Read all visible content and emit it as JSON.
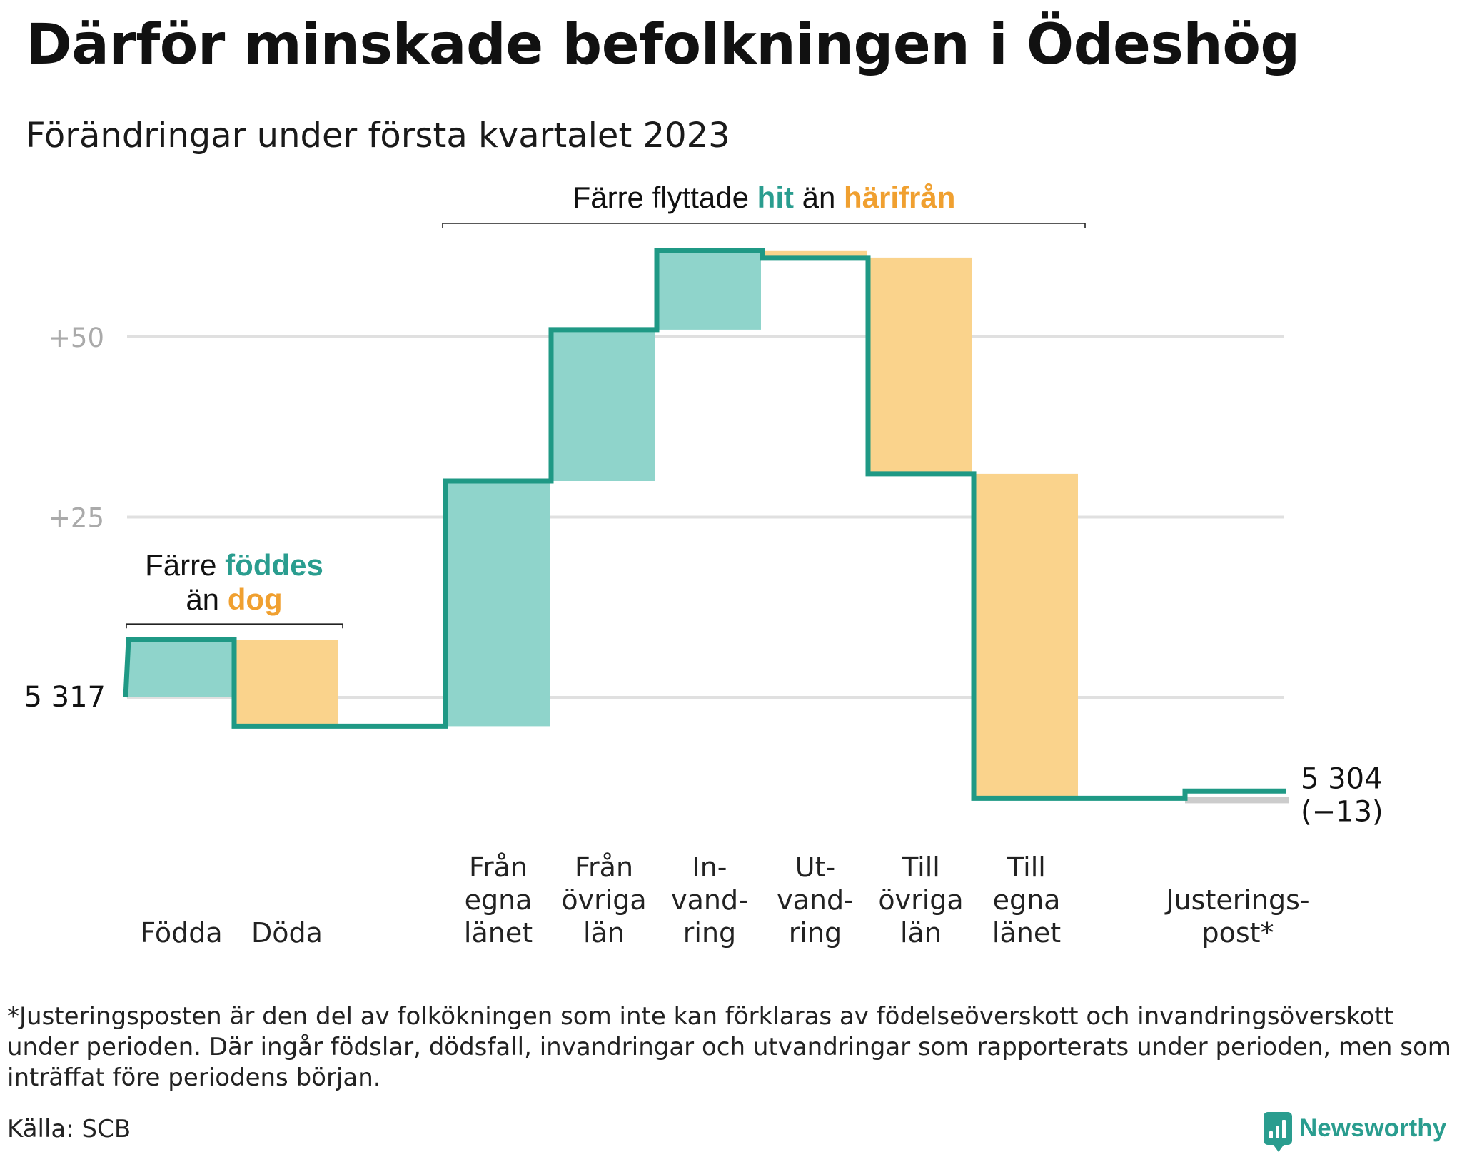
{
  "title": "Därför minskade befolkningen i Ödeshög",
  "subtitle": "Förändringar under första kvartalet 2023",
  "colors": {
    "increase": "#8fd4cb",
    "decrease": "#fad38c",
    "line": "#1f9985",
    "adjust": "#cccccc",
    "grid": "#e0e0e0",
    "tick": "#aaaaaa",
    "accent_green": "#2a9d8f",
    "accent_orange": "#f0a030"
  },
  "chart_data": {
    "type": "waterfall",
    "start_value": 5317,
    "start_label": "5 317",
    "end_label": "5 304",
    "end_change_label": "(−13)",
    "yticks": [
      {
        "value": 25,
        "label": "+25"
      },
      {
        "value": 50,
        "label": "+50"
      }
    ],
    "steps": [
      {
        "label": [
          "Födda"
        ],
        "delta": 8,
        "kind": "increase"
      },
      {
        "label": [
          "Döda"
        ],
        "delta": -12,
        "kind": "decrease"
      },
      {
        "label": [],
        "delta": 0,
        "kind": "gap"
      },
      {
        "label": [
          "Från",
          "egna",
          "länet"
        ],
        "delta": 34,
        "kind": "increase"
      },
      {
        "label": [
          "Från",
          "övriga",
          "län"
        ],
        "delta": 21,
        "kind": "increase"
      },
      {
        "label": [
          "In-",
          "vand-",
          "ring"
        ],
        "delta": 11,
        "kind": "increase"
      },
      {
        "label": [
          "Ut-",
          "vand-",
          "ring"
        ],
        "delta": -1,
        "kind": "decrease"
      },
      {
        "label": [
          "Till",
          "övriga",
          "län"
        ],
        "delta": -30,
        "kind": "decrease"
      },
      {
        "label": [
          "Till",
          "egna",
          "länet"
        ],
        "delta": -45,
        "kind": "decrease"
      },
      {
        "label": [],
        "delta": 0,
        "kind": "gap"
      },
      {
        "label": [
          "Justerings-",
          "post*"
        ],
        "delta": 1,
        "kind": "adjust"
      }
    ],
    "annotations": {
      "births": {
        "line1_pre": "Färre ",
        "line1_hl": "föddes",
        "line2_pre": "än ",
        "line2_hl": "dog"
      },
      "migration": {
        "pre": "Färre flyttade ",
        "hl1": "hit",
        "mid": " än ",
        "hl2": "härifrån"
      }
    }
  },
  "footnote": "*Justeringsposten är den del av folkökningen som inte kan förklaras av födelseöverskott och invandringsöverskott under perioden. Där ingår födslar, dödsfall, invandringar och utvandringar som rapporterats under perioden, men som inträffat före periodens början.",
  "source": "Källa: SCB",
  "brand": "Newsworthy"
}
